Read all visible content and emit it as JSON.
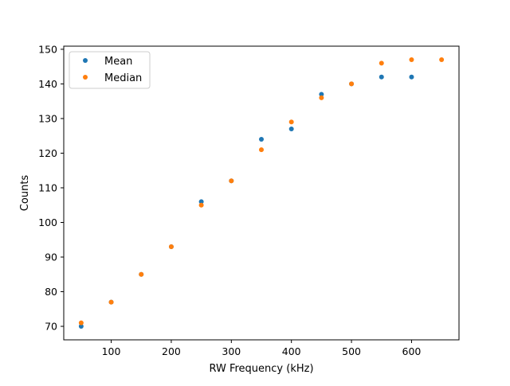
{
  "chart_data": {
    "type": "scatter",
    "title": "",
    "xlabel": "RW Frequency (kHz)",
    "ylabel": "Counts",
    "xlim": [
      21,
      679
    ],
    "ylim": [
      66.1,
      150.9
    ],
    "xticks": [
      100,
      200,
      300,
      400,
      500,
      600
    ],
    "yticks": [
      70,
      80,
      90,
      100,
      110,
      120,
      130,
      140,
      150
    ],
    "grid": false,
    "legend_position": "top-left",
    "series": [
      {
        "name": "Mean",
        "color": "#1f77b4",
        "x": [
          50,
          100,
          150,
          200,
          250,
          300,
          350,
          400,
          450,
          500,
          550,
          600
        ],
        "y": [
          70,
          77,
          85,
          93,
          106,
          112,
          124,
          127,
          137,
          140,
          142,
          142
        ]
      },
      {
        "name": "Median",
        "color": "#ff7f0e",
        "x": [
          50,
          100,
          150,
          200,
          250,
          300,
          350,
          400,
          450,
          500,
          550,
          600,
          650
        ],
        "y": [
          71,
          77,
          85,
          93,
          105,
          112,
          121,
          129,
          136,
          140,
          146,
          147,
          147
        ]
      }
    ]
  }
}
